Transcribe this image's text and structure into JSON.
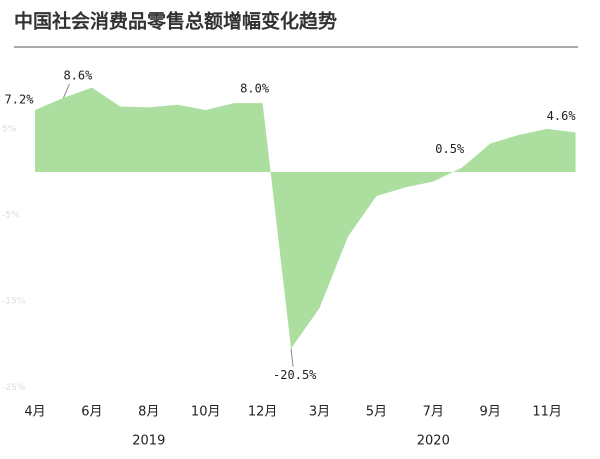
{
  "chart_data": {
    "type": "area",
    "title": "中国社会消费品零售总额增幅变化趋势",
    "categories": [
      "4月",
      null,
      "6月",
      null,
      "8月",
      null,
      "10月",
      null,
      "12月",
      null,
      "3月",
      null,
      "5月",
      null,
      "7月",
      null,
      "9月",
      null,
      "11月",
      null
    ],
    "groups": [
      "2019",
      "2020"
    ],
    "values": [
      7.2,
      8.6,
      9.8,
      7.6,
      7.5,
      7.8,
      7.2,
      8.0,
      8.0,
      -20.5,
      -15.8,
      -7.5,
      -2.8,
      -1.8,
      -1.1,
      0.5,
      3.3,
      4.3,
      5.0,
      4.6
    ],
    "value_labels": [
      "7.2%",
      "8.6%",
      null,
      null,
      null,
      null,
      null,
      "8.0%",
      null,
      "-20.5%",
      null,
      null,
      null,
      null,
      null,
      "0.5%",
      null,
      null,
      null,
      "4.6%"
    ],
    "color": "#acdf9f",
    "ylim": [
      -26,
      13
    ],
    "yticks": [
      {
        "value": 5,
        "label": "5%"
      },
      {
        "value": -5,
        "label": "-5%"
      },
      {
        "value": -15,
        "label": "-15%"
      },
      {
        "value": -25,
        "label": "-25%"
      }
    ],
    "grid": false
  }
}
